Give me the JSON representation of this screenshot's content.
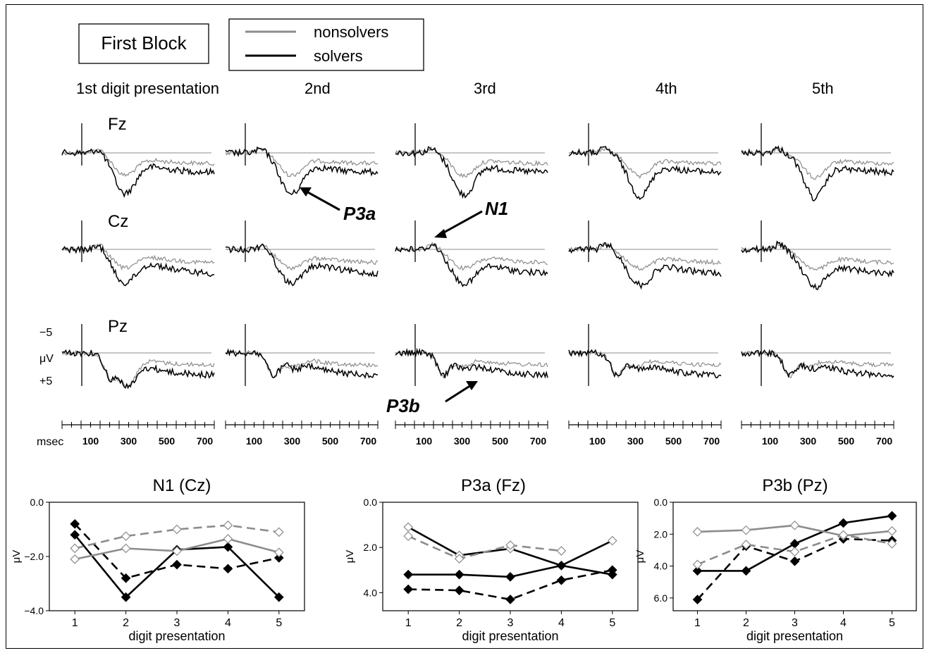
{
  "block_label": "First Block",
  "legend": {
    "items": [
      {
        "label": "nonsolvers",
        "color": "#8c8c8c"
      },
      {
        "label": "solvers",
        "color": "#000000"
      }
    ]
  },
  "erp": {
    "column_titles": [
      "1st digit presentation",
      "2nd",
      "3rd",
      "4th",
      "5th"
    ],
    "row_labels": [
      "Fz",
      "Cz",
      "Pz"
    ],
    "voltage_scale": {
      "top": "−5",
      "unit": "μV",
      "bottom": "+5"
    },
    "time_axis": {
      "unit_label": "msec",
      "tick_labels": [
        "100",
        "300",
        "500",
        "700"
      ]
    },
    "annotations": [
      "P3a",
      "N1",
      "P3b"
    ]
  },
  "chart_data": [
    {
      "type": "line",
      "title": "N1 (Cz)",
      "xlabel": "digit presentation",
      "ylabel": "μV",
      "x": [
        1,
        2,
        3,
        4,
        5
      ],
      "ylim": [
        0.0,
        -4.0
      ],
      "yticks": [
        "−4.0",
        "−2.0",
        "0.0"
      ],
      "series": [
        {
          "color": "#000000",
          "dash": false,
          "marker": "filled-diamond",
          "values": [
            -1.2,
            -3.5,
            -1.75,
            -1.65,
            -3.5
          ]
        },
        {
          "color": "#000000",
          "dash": true,
          "marker": "filled-diamond",
          "values": [
            -0.8,
            -2.8,
            -2.3,
            -2.45,
            -2.05
          ]
        },
        {
          "color": "#8c8c8c",
          "dash": false,
          "marker": "open-diamond",
          "values": [
            -2.1,
            -1.7,
            -1.8,
            -1.35,
            -1.85
          ]
        },
        {
          "color": "#8c8c8c",
          "dash": true,
          "marker": "open-diamond",
          "values": [
            -1.7,
            -1.25,
            -1.0,
            -0.85,
            -1.1
          ]
        }
      ]
    },
    {
      "type": "line",
      "title": "P3a (Fz)",
      "xlabel": "digit presentation",
      "ylabel": "μV",
      "x": [
        1,
        2,
        3,
        4,
        5
      ],
      "ylim": [
        0.0,
        4.8
      ],
      "yticks": [
        "0.0",
        "2.0",
        "4.0"
      ],
      "series": [
        {
          "color": "#000000",
          "dash": false,
          "marker": "open-diamond",
          "values": [
            1.1,
            2.35,
            2.05,
            2.8,
            1.7
          ]
        },
        {
          "color": "#000000",
          "dash": false,
          "marker": "filled-diamond",
          "values": [
            3.2,
            3.2,
            3.3,
            2.8,
            3.2
          ]
        },
        {
          "color": "#000000",
          "dash": true,
          "marker": "filled-diamond",
          "values": [
            3.85,
            3.9,
            4.3,
            3.45,
            3.0
          ]
        },
        {
          "color": "#8c8c8c",
          "dash": true,
          "marker": "open-diamond",
          "values": [
            1.5,
            2.5,
            1.9,
            2.15,
            null
          ]
        }
      ]
    },
    {
      "type": "line",
      "title": "P3b (Pz)",
      "xlabel": "digit presentation",
      "ylabel": "μV",
      "x": [
        1,
        2,
        3,
        4,
        5
      ],
      "ylim": [
        0.0,
        6.8
      ],
      "yticks": [
        "0.0",
        "2.0",
        "4.0",
        "6.0"
      ],
      "series": [
        {
          "color": "#000000",
          "dash": false,
          "marker": "filled-diamond",
          "values": [
            4.3,
            4.3,
            2.6,
            1.3,
            0.85
          ]
        },
        {
          "color": "#000000",
          "dash": true,
          "marker": "filled-diamond",
          "values": [
            6.1,
            2.75,
            3.7,
            2.3,
            2.4
          ]
        },
        {
          "color": "#8c8c8c",
          "dash": false,
          "marker": "open-diamond",
          "values": [
            1.85,
            1.75,
            1.45,
            2.1,
            1.8
          ]
        },
        {
          "color": "#8c8c8c",
          "dash": true,
          "marker": "open-diamond",
          "values": [
            3.9,
            2.65,
            3.1,
            2.05,
            2.6
          ]
        }
      ]
    }
  ]
}
